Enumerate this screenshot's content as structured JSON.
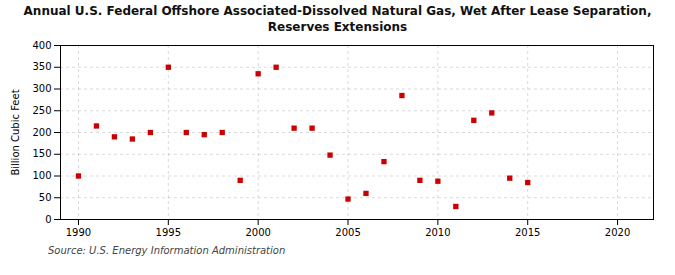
{
  "chart_data": {
    "type": "scatter",
    "title": "Annual U.S. Federal Offshore Associated-Dissolved Natural Gas, Wet After Lease Separation,\nReserves Extensions",
    "ylabel": "Billion Cubic Feet",
    "source": "Source: U.S. Energy Information Administration",
    "x": [
      1990,
      1991,
      1992,
      1993,
      1994,
      1995,
      1996,
      1997,
      1998,
      1999,
      2000,
      2001,
      2002,
      2003,
      2004,
      2005,
      2006,
      2007,
      2008,
      2009,
      2010,
      2011,
      2012,
      2013,
      2014,
      2015
    ],
    "values": [
      100,
      215,
      190,
      185,
      200,
      350,
      200,
      195,
      200,
      90,
      335,
      350,
      210,
      210,
      148,
      47,
      60,
      133,
      285,
      90,
      88,
      30,
      228,
      245,
      95,
      85
    ],
    "color": "#cc0000",
    "marker": "square",
    "xlim": [
      1989,
      2022
    ],
    "ylim": [
      0,
      400
    ],
    "xticks": [
      1990,
      1995,
      2000,
      2005,
      2010,
      2015,
      2020
    ],
    "yticks": [
      0,
      50,
      100,
      150,
      200,
      250,
      300,
      350,
      400
    ],
    "grid": true
  }
}
